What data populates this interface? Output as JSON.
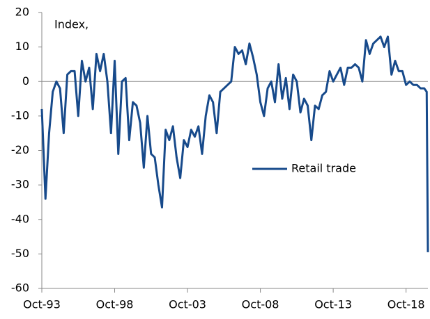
{
  "chart_data": {
    "type": "line",
    "y_label": "Index,",
    "x": [
      "1993-10",
      "1994-01",
      "1994-04",
      "1994-07",
      "1994-10",
      "1995-01",
      "1995-04",
      "1995-07",
      "1995-10",
      "1996-01",
      "1996-04",
      "1996-07",
      "1996-10",
      "1997-01",
      "1997-04",
      "1997-07",
      "1997-10",
      "1998-01",
      "1998-04",
      "1998-07",
      "1998-10",
      "1999-01",
      "1999-04",
      "1999-07",
      "1999-10",
      "2000-01",
      "2000-04",
      "2000-07",
      "2000-10",
      "2001-01",
      "2001-04",
      "2001-07",
      "2001-10",
      "2002-01",
      "2002-04",
      "2002-07",
      "2002-10",
      "2003-01",
      "2003-04",
      "2003-07",
      "2003-10",
      "2004-01",
      "2004-04",
      "2004-07",
      "2004-10",
      "2005-01",
      "2005-04",
      "2005-07",
      "2005-10",
      "2006-01",
      "2006-04",
      "2006-07",
      "2006-10",
      "2007-01",
      "2007-04",
      "2007-07",
      "2007-10",
      "2008-01",
      "2008-04",
      "2008-07",
      "2008-10",
      "2009-01",
      "2009-04",
      "2009-07",
      "2009-10",
      "2010-01",
      "2010-04",
      "2010-07",
      "2010-10",
      "2011-01",
      "2011-04",
      "2011-07",
      "2011-10",
      "2012-01",
      "2012-04",
      "2012-07",
      "2012-10",
      "2013-01",
      "2013-04",
      "2013-07",
      "2013-10",
      "2014-01",
      "2014-04",
      "2014-07",
      "2014-10",
      "2015-01",
      "2015-04",
      "2015-07",
      "2015-10",
      "2016-01",
      "2016-04",
      "2016-07",
      "2016-10",
      "2017-01",
      "2017-04",
      "2017-07",
      "2017-10",
      "2018-01",
      "2018-04",
      "2018-07",
      "2018-10",
      "2019-01",
      "2019-04",
      "2019-07",
      "2019-10",
      "2020-01",
      "2020-03",
      "2020-04"
    ],
    "series": [
      {
        "name": "Retail trade",
        "color": "#174a8b",
        "values": [
          -8,
          -34,
          -15,
          -3,
          0,
          -2,
          -15,
          2,
          3,
          3,
          -10,
          6,
          0,
          4,
          -8,
          8,
          3,
          8,
          0,
          -15,
          6,
          -21,
          0,
          1,
          -17,
          -6,
          -7,
          -12,
          -25,
          -10,
          -21,
          -22,
          -30,
          -36.5,
          -14,
          -17,
          -13,
          -22,
          -28,
          -17,
          -19,
          -14,
          -16,
          -13,
          -21,
          -10,
          -4,
          -6,
          -15,
          -3,
          -2,
          -1,
          0,
          10,
          8,
          9,
          5,
          11,
          7,
          2,
          -6,
          -10,
          -2,
          0,
          -6,
          5,
          -5,
          1,
          -8,
          2,
          0,
          -9,
          -5,
          -7,
          -17,
          -7,
          -8,
          -4,
          -3,
          3,
          0,
          2,
          4,
          -1,
          4,
          4,
          5,
          4,
          0,
          12,
          8,
          11,
          12,
          13,
          10,
          13,
          2,
          6,
          3,
          3,
          -1,
          0,
          -1,
          -1,
          -2,
          -2,
          -3,
          -49.5
        ]
      }
    ],
    "xlim": [
      "1993-10",
      "2020-04"
    ],
    "xticks": [
      {
        "value": "1993-10",
        "label": "Oct-93"
      },
      {
        "value": "1998-10",
        "label": "Oct-98"
      },
      {
        "value": "2003-10",
        "label": "Oct-03"
      },
      {
        "value": "2008-10",
        "label": "Oct-08"
      },
      {
        "value": "2013-10",
        "label": "Oct-13"
      },
      {
        "value": "2018-10",
        "label": "Oct-18"
      }
    ],
    "ylim": [
      -60,
      20
    ],
    "yticks": [
      -60,
      -50,
      -40,
      -30,
      -20,
      -10,
      0,
      10,
      20
    ],
    "legend": "center-right"
  }
}
